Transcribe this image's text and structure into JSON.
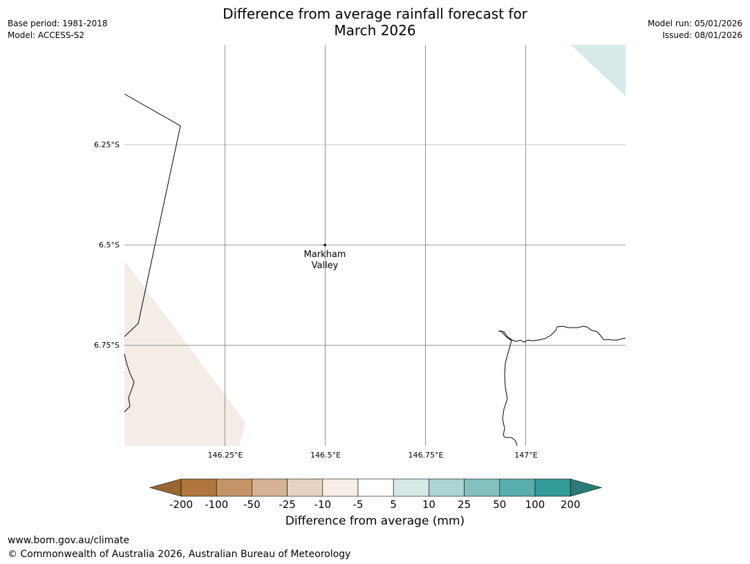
{
  "header": {
    "title_line1": "Difference from average rainfall forecast for",
    "title_line2": "March 2026",
    "base_period": "Base period: 1981-2018",
    "model": "Model: ACCESS-S2",
    "model_run": "Model run: 05/01/2026",
    "issued": "Issued: 08/01/2026"
  },
  "map": {
    "lat_labels": [
      "6.25°S",
      "6.5°S",
      "6.75°S"
    ],
    "lon_labels": [
      "146.25°E",
      "146.5°E",
      "146.75°E",
      "147°E"
    ],
    "place": {
      "name_line1": "Markham",
      "name_line2": "Valley"
    },
    "colors": {
      "tan_light": "#f3ede6",
      "teal_light": "#d5e9e8"
    }
  },
  "colorbar": {
    "label": "Difference from average (mm)",
    "ticks": [
      "-200",
      "-100",
      "-50",
      "-25",
      "-10",
      "-5",
      "5",
      "10",
      "25",
      "50",
      "100",
      "200"
    ],
    "colors": [
      "#9c6530",
      "#b0763d",
      "#c49468",
      "#d5b394",
      "#e6d2c0",
      "#f5efe8",
      "#ffffff",
      "#d5e9e8",
      "#acd4d3",
      "#83c1be",
      "#5aaead",
      "#339b98",
      "#2a7b78"
    ]
  },
  "footer": {
    "url": "www.bom.gov.au/climate",
    "copyright": "© Commonwealth of Australia 2026, Australian Bureau of Meteorology"
  }
}
